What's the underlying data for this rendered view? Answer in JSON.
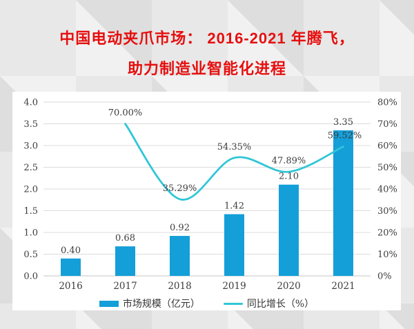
{
  "title": {
    "line1": "中国电动夹爪市场： 2016-2021 年腾飞，",
    "line2": "助力制造业智能化进程"
  },
  "colors": {
    "title": "#e60f0f",
    "bar": "#149fd9",
    "line": "#30c6d6",
    "panel": "#ffffff",
    "background": "#e8e8e8",
    "grid": "#dbdbdb",
    "baseline": "#c4c4c4",
    "axis_text": "#3c3c3c"
  },
  "chart_data": {
    "type": "bar+line",
    "title": "",
    "categories": [
      "2016",
      "2017",
      "2018",
      "2019",
      "2020",
      "2021"
    ],
    "series": [
      {
        "name": "市场规模（亿元）",
        "type": "bar",
        "axis": "left",
        "color": "#149fd9",
        "values": [
          0.4,
          0.68,
          0.92,
          1.42,
          2.1,
          3.35
        ],
        "labels": [
          "0.40",
          "0.68",
          "0.92",
          "1.42",
          "2.10",
          "3.35"
        ]
      },
      {
        "name": "同比增长（%）",
        "type": "line",
        "axis": "right",
        "color": "#30c6d6",
        "smooth": true,
        "values": [
          null,
          70.0,
          35.29,
          54.35,
          47.89,
          59.52
        ],
        "labels": [
          null,
          "70.00%",
          "35.29%",
          "54.35%",
          "47.89%",
          "59.52%"
        ]
      }
    ],
    "left_axis": {
      "min": 0,
      "max": 4,
      "step": 0.5,
      "tick_labels": [
        "0.0",
        "0.5",
        "1.0",
        "1.5",
        "2.0",
        "2.5",
        "3.0",
        "3.5",
        "4.0"
      ]
    },
    "right_axis": {
      "min": 0,
      "max": 80,
      "step": 10,
      "tick_labels": [
        "0%",
        "10%",
        "20%",
        "30%",
        "40%",
        "50%",
        "60%",
        "70%",
        "80%"
      ]
    },
    "grid": true,
    "legend_position": "bottom"
  }
}
